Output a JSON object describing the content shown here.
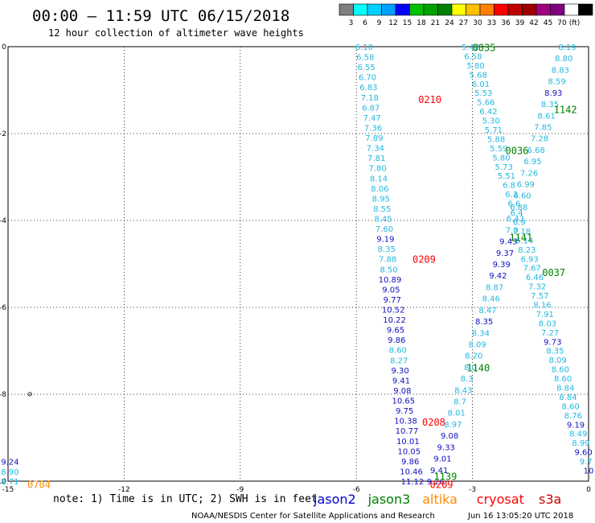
{
  "header": {
    "title": "00:00 — 11:59 UTC 06/15/2018",
    "subtitle": "12 hour collection of altimeter wave heights"
  },
  "color_scale": {
    "colors": [
      "#7f7f7f",
      "#00ffff",
      "#00d0ff",
      "#00a0ff",
      "#0000ff",
      "#00c000",
      "#00a000",
      "#008000",
      "#ffff00",
      "#ffc000",
      "#ff8000",
      "#ff0000",
      "#c00000",
      "#a00000",
      "#a00080",
      "#800080",
      "#ffffff",
      "#000000"
    ],
    "labels": [
      "3",
      "6",
      "9",
      "12",
      "15",
      "18",
      "21",
      "24",
      "27",
      "30",
      "33",
      "36",
      "39",
      "42",
      "45",
      "70",
      "(ft)"
    ]
  },
  "footer": {
    "note": "note:  1) Time is in UTC;  2) SWH is in feet",
    "credit": "NOAA/NESDIS Center for Satellite Applications and Research",
    "timestamp": "Jun 16 13:05:20 UTC 2018",
    "legend": [
      {
        "name": "jason2",
        "color": "#0000cc"
      },
      {
        "name": "jason3",
        "color": "#008000"
      },
      {
        "name": "altika",
        "color": "#ff8c00"
      },
      {
        "name": "cryosat",
        "color": "#ff0000"
      },
      {
        "name": "s3a",
        "color": "#cc0000"
      }
    ]
  },
  "chart_data": {
    "type": "scatter",
    "x_ticks": [
      -15,
      -12,
      -9,
      -6,
      -3,
      0
    ],
    "y_ticks": [
      0,
      -2,
      -4,
      -6,
      -8,
      -10
    ],
    "x_tick_labels": [
      "-15",
      "-12",
      "-9",
      "-6",
      "-3",
      "0"
    ],
    "y_tick_labels": [
      "0",
      "-2",
      "-4",
      "-6",
      "-8",
      "-10"
    ],
    "xlim": [
      -15,
      0
    ],
    "ylim": [
      -10,
      0
    ],
    "grid": true,
    "time_labels": [
      {
        "text": "0035",
        "lon": -2.7,
        "lat": -0.03,
        "color": "#008000"
      },
      {
        "text": "0210",
        "lon": -4.1,
        "lat": -1.22,
        "color": "#ff0000"
      },
      {
        "text": "1142",
        "lon": -0.6,
        "lat": -1.45,
        "color": "#008000"
      },
      {
        "text": "0036",
        "lon": -1.85,
        "lat": -2.4,
        "color": "#008000"
      },
      {
        "text": "1141",
        "lon": -1.75,
        "lat": -4.4,
        "color": "#008000"
      },
      {
        "text": "0209",
        "lon": -4.25,
        "lat": -4.9,
        "color": "#ff0000"
      },
      {
        "text": "0037",
        "lon": -0.9,
        "lat": -5.2,
        "color": "#008000"
      },
      {
        "text": "1140",
        "lon": -2.85,
        "lat": -7.4,
        "color": "#008000"
      },
      {
        "text": "0208",
        "lon": -4.0,
        "lat": -8.65,
        "color": "#ff0000"
      },
      {
        "text": "1139",
        "lon": -3.7,
        "lat": -9.9,
        "color": "#008000"
      },
      {
        "text": "0209",
        "lon": -3.8,
        "lat": -10.08,
        "color": "#ff0000"
      },
      {
        "text": "0704",
        "lon": -14.2,
        "lat": -10.08,
        "color": "#ff8c00"
      }
    ],
    "tracks": [
      {
        "name": "track-west",
        "values": [
          "6.10",
          "6.58",
          "6.55",
          "6.70",
          "6.83",
          "7.18",
          "6.87",
          "7.47",
          "7.36",
          "7.89",
          "7.34",
          "7.81",
          "7.80",
          "8.14",
          "8.06",
          "8.95",
          "8.55",
          "8.45",
          "7.60",
          "9.19",
          "8.35",
          "7.88",
          "8.50",
          "10.89",
          "9.05",
          "9.77",
          "10.52",
          "10.22",
          "9.65",
          "9.86",
          "8.60",
          "8.27",
          "9.30",
          "9.41",
          "9.08",
          "10.65",
          "9.75",
          "10.38",
          "10.77",
          "10.01",
          "10.05",
          "9.86",
          "10.46",
          "11.12"
        ],
        "colors": [
          "#22b8e0",
          "#22b8e0",
          "#22b8e0",
          "#22b8e0",
          "#22b8e0",
          "#22b8e0",
          "#22b8e0",
          "#22b8e0",
          "#22b8e0",
          "#22b8e0",
          "#22b8e0",
          "#22b8e0",
          "#22b8e0",
          "#22b8e0",
          "#22b8e0",
          "#22b8e0",
          "#22b8e0",
          "#22b8e0",
          "#22b8e0",
          "#1010c0",
          "#22b8e0",
          "#22b8e0",
          "#22b8e0",
          "#1010c0",
          "#1010c0",
          "#1010c0",
          "#1010c0",
          "#1010c0",
          "#1010c0",
          "#1010c0",
          "#22b8e0",
          "#22b8e0",
          "#1010c0",
          "#1010c0",
          "#1010c0",
          "#1010c0",
          "#1010c0",
          "#1010c0",
          "#1010c0",
          "#1010c0",
          "#1010c0",
          "#1010c0",
          "#1010c0",
          "#1010c0"
        ],
        "lon_start": -5.8,
        "lat_start": 0.0,
        "lon_end": -4.55,
        "lat_end": -10.0
      },
      {
        "name": "track-center",
        "values": [
          "5.42",
          "6.58",
          "5.80",
          "5.68",
          "6.01",
          "5.53",
          "5.66",
          "6.42",
          "5.30",
          "5.71",
          "5.88",
          "5.59",
          "5.80",
          "5.73",
          "5.51",
          "6.8",
          "6.3",
          "6.6",
          "6.4",
          "6.9",
          "7.18",
          "6.14",
          "8.23",
          "6.93",
          "7.67",
          "6.46",
          "7.32",
          "7.57",
          "8.16",
          "7.91",
          "8.03",
          "7.27",
          "9.73",
          "8.35",
          "8.09",
          "8.60",
          "8.60",
          "8.84",
          "8.84",
          "8.60",
          "8.76",
          "9.19",
          "8.49",
          "8.99",
          "9.60",
          "9.7",
          "10"
        ],
        "colors": [
          "#22b8e0",
          "#22b8e0",
          "#22b8e0",
          "#22b8e0",
          "#22b8e0",
          "#22b8e0",
          "#22b8e0",
          "#22b8e0",
          "#22b8e0",
          "#22b8e0",
          "#22b8e0",
          "#22b8e0",
          "#22b8e0",
          "#22b8e0",
          "#22b8e0",
          "#22b8e0",
          "#22b8e0",
          "#22b8e0",
          "#22b8e0",
          "#22b8e0",
          "#22b8e0",
          "#22b8e0",
          "#22b8e0",
          "#22b8e0",
          "#22b8e0",
          "#22b8e0",
          "#22b8e0",
          "#22b8e0",
          "#22b8e0",
          "#22b8e0",
          "#22b8e0",
          "#22b8e0",
          "#1010c0",
          "#22b8e0",
          "#22b8e0",
          "#22b8e0",
          "#22b8e0",
          "#22b8e0",
          "#22b8e0",
          "#22b8e0",
          "#22b8e0",
          "#1010c0",
          "#22b8e0",
          "#22b8e0",
          "#1010c0",
          "#22b8e0",
          "#1010c0"
        ],
        "lon_start": -3.05,
        "lat_start": 0.0,
        "lon_end": 0.0,
        "lat_end": -9.75
      },
      {
        "name": "track-east",
        "values": [
          "8.19",
          "8.80",
          "8.83",
          "8.59",
          "8.93",
          "8.35",
          "8.61",
          "7.85",
          "7.28",
          "6.68",
          "6.95",
          "7.26",
          "6.99",
          "6.60",
          "6.88",
          "6.43",
          "7.0",
          "9.43",
          "9.37",
          "9.39",
          "9.42",
          "8.87",
          "8.46",
          "8.47",
          "8.35",
          "8.34",
          "8.09",
          "8.20",
          "8.0",
          "8.3",
          "8.43",
          "8.7",
          "8.01",
          "8.97",
          "9.08",
          "9.33",
          "9.01",
          "9.41",
          "9.26"
        ],
        "colors": [
          "#22b8e0",
          "#22b8e0",
          "#22b8e0",
          "#22b8e0",
          "#1010c0",
          "#22b8e0",
          "#22b8e0",
          "#22b8e0",
          "#22b8e0",
          "#22b8e0",
          "#22b8e0",
          "#22b8e0",
          "#22b8e0",
          "#22b8e0",
          "#22b8e0",
          "#22b8e0",
          "#22b8e0",
          "#1010c0",
          "#1010c0",
          "#1010c0",
          "#1010c0",
          "#22b8e0",
          "#22b8e0",
          "#22b8e0",
          "#1010c0",
          "#22b8e0",
          "#22b8e0",
          "#22b8e0",
          "#22b8e0",
          "#22b8e0",
          "#22b8e0",
          "#22b8e0",
          "#22b8e0",
          "#22b8e0",
          "#1010c0",
          "#1010c0",
          "#1010c0",
          "#1010c0",
          "#1010c0"
        ],
        "lon_start": -0.55,
        "lat_start": 0.0,
        "lon_end": -3.95,
        "lat_end": -10.0
      },
      {
        "name": "track-far-west",
        "values": [
          "9.24",
          "8.90",
          "8.71"
        ],
        "colors": [
          "#1010c0",
          "#22b8e0",
          "#22b8e0"
        ],
        "lon_start": -14.95,
        "lat_start": -9.55,
        "lon_end": -14.95,
        "lat_end": -10.0
      }
    ]
  }
}
